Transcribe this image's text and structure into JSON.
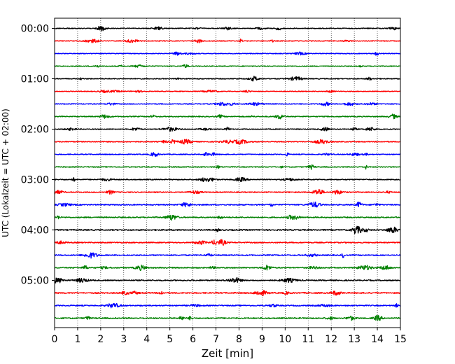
{
  "chart_data": {
    "type": "line",
    "xlabel": "Zeit  [min]",
    "ylabel": "UTC (Lokalzeit = UTC + 02:00)",
    "xlim": [
      0,
      15
    ],
    "x_ticks": [
      0,
      1,
      2,
      3,
      4,
      5,
      6,
      7,
      8,
      9,
      10,
      11,
      12,
      13,
      14,
      15
    ],
    "y_tick_labels": [
      "00:00",
      "01:00",
      "02:00",
      "03:00",
      "04:00",
      "05:00"
    ],
    "trace_interval_min": 15,
    "grid": "vertical dotted at each minute",
    "series_colors": [
      "#000000",
      "#ff0000",
      "#0000ff",
      "#008000"
    ],
    "traces": [
      {
        "start": "00:00",
        "color": "#000000",
        "amplitude": 0.25
      },
      {
        "start": "00:15",
        "color": "#ff0000",
        "amplitude": 0.22
      },
      {
        "start": "00:30",
        "color": "#0000ff",
        "amplitude": 0.22
      },
      {
        "start": "00:45",
        "color": "#008000",
        "amplitude": 0.24
      },
      {
        "start": "01:00",
        "color": "#000000",
        "amplitude": 0.25
      },
      {
        "start": "01:15",
        "color": "#ff0000",
        "amplitude": 0.22
      },
      {
        "start": "01:30",
        "color": "#0000ff",
        "amplitude": 0.24
      },
      {
        "start": "01:45",
        "color": "#008000",
        "amplitude": 0.28
      },
      {
        "start": "02:00",
        "color": "#000000",
        "amplitude": 0.25
      },
      {
        "start": "02:15",
        "color": "#ff0000",
        "amplitude": 0.26
      },
      {
        "start": "02:30",
        "color": "#0000ff",
        "amplitude": 0.26
      },
      {
        "start": "02:45",
        "color": "#008000",
        "amplitude": 0.26
      },
      {
        "start": "03:00",
        "color": "#000000",
        "amplitude": 0.28
      },
      {
        "start": "03:15",
        "color": "#ff0000",
        "amplitude": 0.28
      },
      {
        "start": "03:30",
        "color": "#0000ff",
        "amplitude": 0.32
      },
      {
        "start": "03:45",
        "color": "#008000",
        "amplitude": 0.34
      },
      {
        "start": "04:00",
        "color": "#000000",
        "amplitude": 0.34
      },
      {
        "start": "04:15",
        "color": "#ff0000",
        "amplitude": 0.32
      },
      {
        "start": "04:30",
        "color": "#0000ff",
        "amplitude": 0.32
      },
      {
        "start": "04:45",
        "color": "#008000",
        "amplitude": 0.3
      },
      {
        "start": "05:00",
        "color": "#000000",
        "amplitude": 0.34
      },
      {
        "start": "05:15",
        "color": "#ff0000",
        "amplitude": 0.34
      },
      {
        "start": "05:30",
        "color": "#0000ff",
        "amplitude": 0.32
      },
      {
        "start": "05:45",
        "color": "#008000",
        "amplitude": 0.34
      }
    ]
  }
}
